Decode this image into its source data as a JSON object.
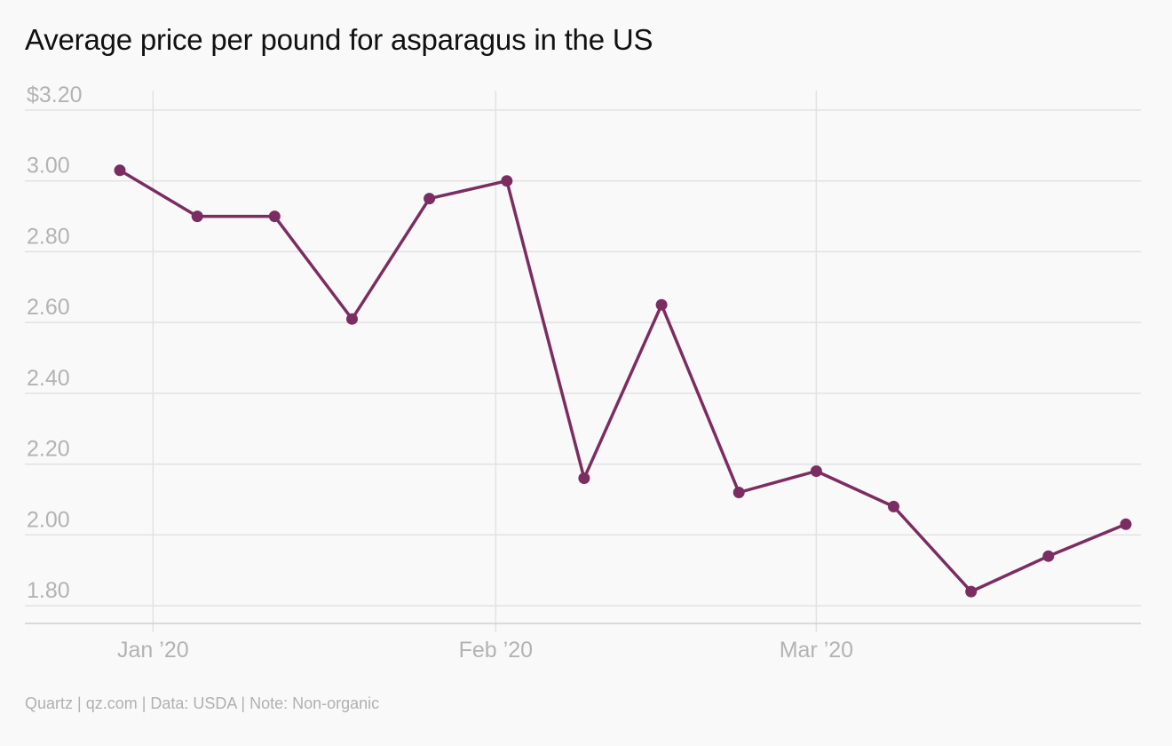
{
  "chart_data": {
    "type": "line",
    "title": "Average price per pound for asparagus in the US",
    "xlabel": "",
    "ylabel": "",
    "x": [
      "2019-12-29",
      "2020-01-05",
      "2020-01-12",
      "2020-01-19",
      "2020-01-26",
      "2020-02-02",
      "2020-02-09",
      "2020-02-16",
      "2020-02-23",
      "2020-03-01",
      "2020-03-08",
      "2020-03-15",
      "2020-03-22",
      "2020-03-29"
    ],
    "series": [
      {
        "values": [
          3.03,
          2.9,
          2.9,
          2.61,
          2.95,
          3.0,
          2.16,
          2.65,
          2.12,
          2.18,
          2.08,
          1.84,
          1.94,
          2.03
        ],
        "color": "#7b2d61"
      }
    ],
    "ylim": [
      1.75,
      3.2
    ],
    "y_ticks": [
      1.8,
      2.0,
      2.2,
      2.4,
      2.6,
      2.8,
      3.0,
      3.2
    ],
    "y_tick_labels": [
      "1.80",
      "2.00",
      "2.20",
      "2.40",
      "2.60",
      "2.80",
      "3.00",
      "$3.20"
    ],
    "x_ticks": [
      "2020-01-01",
      "2020-02-01",
      "2020-03-01"
    ],
    "x_tick_labels": [
      "Jan ’20",
      "Feb ’20",
      "Mar ’20"
    ],
    "grid": true,
    "legend": "none"
  },
  "footer": "Quartz | qz.com | Data: USDA | Note: Non-organic"
}
